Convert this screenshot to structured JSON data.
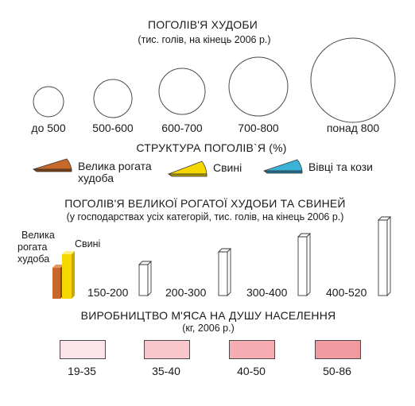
{
  "livestock": {
    "title": "ПОГОЛІВ'Я ХУДОБИ",
    "subtitle": "(тис. голів,  на кінець 2006 р.)",
    "sizes": [
      "до 500",
      "500-600",
      "600-700",
      "700-800",
      "понад 800"
    ]
  },
  "structure": {
    "title": "СТРУКТУРА ПОГОЛІВ`Я (%)",
    "items": [
      {
        "label_line1": "Велика рогата",
        "label_line2": "худоба",
        "color": "#c8692a"
      },
      {
        "label": "Свині",
        "color": "#f4d800"
      },
      {
        "label": "Вівці та кози",
        "color": "#3ab3d9"
      }
    ]
  },
  "cattle_pigs": {
    "title": "ПОГОЛІВ'Я ВЕЛИКОЇ РОГАТОЇ ХУДОБИ ТА СВИНЕЙ",
    "subtitle": "(у господарствах усіх категорій, тис. голів, на кінець 2006 р.)",
    "sample_labels": {
      "cattle_line1": "Велика",
      "cattle_line2": "рогата",
      "cattle_line3": "худоба",
      "pigs": "Свині"
    },
    "sample_colors": {
      "cattle": "#c8692a",
      "pigs": "#f4d800"
    },
    "ranges": [
      "150-200",
      "200-300",
      "300-400",
      "400-520"
    ]
  },
  "meat": {
    "title": "ВИРОБНИЦТВО М'ЯСА НА ДУШУ НАСЕЛЕННЯ",
    "subtitle": "(кг, 2006 р.)",
    "classes": [
      {
        "label": "19-35",
        "color": "#fde3ea"
      },
      {
        "label": "35-40",
        "color": "#f9c6cb"
      },
      {
        "label": "40-50",
        "color": "#f5adb3"
      },
      {
        "label": "50-86",
        "color": "#f09aa0"
      }
    ]
  }
}
